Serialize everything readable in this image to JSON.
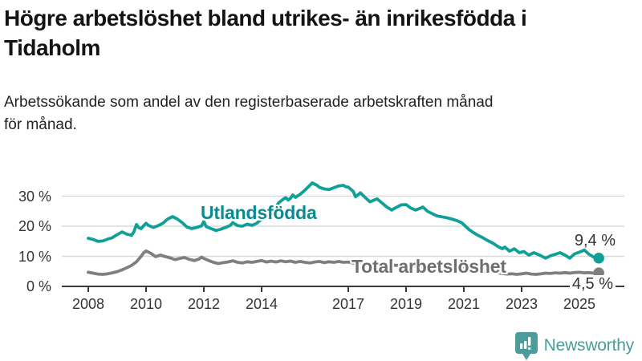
{
  "header": {
    "title_line1": "Högre arbetslöshet bland utrikes- än inrikesfödda i",
    "title_line2": "Tidaholm",
    "subtitle_line1": "Arbetssökande som andel av den registerbaserade arbetskraften månad",
    "subtitle_line2": "för månad."
  },
  "footer": {
    "brand": "Newsworthy",
    "brand_color": "#4a9d9a"
  },
  "chart_data": {
    "type": "line",
    "title": "Högre arbetslöshet bland utrikes- än inrikesfödda i Tidaholm",
    "subtitle": "Arbetssökande som andel av den registerbaserade arbetskraften månad för månad.",
    "xlabel": "",
    "ylabel": "",
    "x_unit": "year (monthly data)",
    "y_unit": "%",
    "xlim": [
      2007.1,
      2026.2
    ],
    "ylim": [
      0,
      36
    ],
    "grid": "horizontal",
    "y_ticks": [
      0,
      10,
      20,
      30
    ],
    "y_tick_suffix": " %",
    "x_ticks": [
      2008,
      2010,
      2012,
      2014,
      2017,
      2019,
      2021,
      2023,
      2025
    ],
    "colors": {
      "grid": "#d9d9d9",
      "axis": "#3a3a3a",
      "tick_text": "#333333"
    },
    "series": [
      {
        "name": "Utlandsfödda",
        "color": "#10a097",
        "label_color": "#0b8b8f",
        "end_label": "9,4 %",
        "end_value": 9.4,
        "points": [
          [
            2008.0,
            16.0
          ],
          [
            2008.17,
            15.6
          ],
          [
            2008.33,
            15.0
          ],
          [
            2008.5,
            15.1
          ],
          [
            2008.67,
            15.7
          ],
          [
            2008.83,
            16.2
          ],
          [
            2009.0,
            17.2
          ],
          [
            2009.17,
            18.1
          ],
          [
            2009.33,
            17.4
          ],
          [
            2009.5,
            17.0
          ],
          [
            2009.58,
            18.2
          ],
          [
            2009.67,
            20.6
          ],
          [
            2009.75,
            19.5
          ],
          [
            2009.83,
            19.2
          ],
          [
            2009.92,
            20.2
          ],
          [
            2010.0,
            21.0
          ],
          [
            2010.08,
            20.3
          ],
          [
            2010.25,
            19.6
          ],
          [
            2010.42,
            20.2
          ],
          [
            2010.58,
            21.0
          ],
          [
            2010.75,
            22.4
          ],
          [
            2010.92,
            23.2
          ],
          [
            2011.08,
            22.4
          ],
          [
            2011.25,
            21.2
          ],
          [
            2011.42,
            19.7
          ],
          [
            2011.58,
            19.2
          ],
          [
            2011.75,
            19.6
          ],
          [
            2011.92,
            20.1
          ],
          [
            2012.0,
            21.6
          ],
          [
            2012.08,
            19.9
          ],
          [
            2012.25,
            19.2
          ],
          [
            2012.42,
            18.6
          ],
          [
            2012.58,
            19.0
          ],
          [
            2012.75,
            19.6
          ],
          [
            2012.92,
            20.3
          ],
          [
            2013.0,
            21.2
          ],
          [
            2013.17,
            20.2
          ],
          [
            2013.33,
            20.0
          ],
          [
            2013.5,
            20.7
          ],
          [
            2013.67,
            20.3
          ],
          [
            2013.83,
            21.0
          ],
          [
            2014.0,
            22.4
          ],
          [
            2014.17,
            23.4
          ],
          [
            2014.33,
            24.6
          ],
          [
            2014.5,
            26.2
          ],
          [
            2014.58,
            27.7
          ],
          [
            2014.75,
            29.0
          ],
          [
            2014.83,
            29.5
          ],
          [
            2014.92,
            28.7
          ],
          [
            2015.0,
            29.3
          ],
          [
            2015.08,
            30.4
          ],
          [
            2015.17,
            29.6
          ],
          [
            2015.33,
            30.6
          ],
          [
            2015.5,
            32.0
          ],
          [
            2015.67,
            33.6
          ],
          [
            2015.75,
            34.4
          ],
          [
            2015.92,
            33.6
          ],
          [
            2016.0,
            32.9
          ],
          [
            2016.17,
            32.4
          ],
          [
            2016.33,
            32.2
          ],
          [
            2016.5,
            32.8
          ],
          [
            2016.67,
            33.4
          ],
          [
            2016.83,
            33.6
          ],
          [
            2016.92,
            33.1
          ],
          [
            2017.0,
            33.0
          ],
          [
            2017.17,
            31.6
          ],
          [
            2017.25,
            29.8
          ],
          [
            2017.42,
            31.1
          ],
          [
            2017.58,
            29.6
          ],
          [
            2017.75,
            28.1
          ],
          [
            2017.92,
            28.8
          ],
          [
            2018.0,
            29.1
          ],
          [
            2018.17,
            27.7
          ],
          [
            2018.33,
            26.4
          ],
          [
            2018.5,
            25.4
          ],
          [
            2018.67,
            26.3
          ],
          [
            2018.83,
            27.1
          ],
          [
            2019.0,
            27.2
          ],
          [
            2019.17,
            26.0
          ],
          [
            2019.33,
            25.4
          ],
          [
            2019.5,
            26.0
          ],
          [
            2019.58,
            26.4
          ],
          [
            2019.75,
            24.9
          ],
          [
            2019.92,
            24.1
          ],
          [
            2020.08,
            23.4
          ],
          [
            2020.25,
            23.1
          ],
          [
            2020.42,
            22.8
          ],
          [
            2020.58,
            22.4
          ],
          [
            2020.75,
            21.9
          ],
          [
            2020.92,
            21.2
          ],
          [
            2021.0,
            20.5
          ],
          [
            2021.17,
            19.0
          ],
          [
            2021.33,
            17.9
          ],
          [
            2021.5,
            16.9
          ],
          [
            2021.67,
            16.1
          ],
          [
            2021.83,
            15.2
          ],
          [
            2022.0,
            14.4
          ],
          [
            2022.17,
            13.3
          ],
          [
            2022.33,
            12.5
          ],
          [
            2022.42,
            13.1
          ],
          [
            2022.58,
            11.7
          ],
          [
            2022.75,
            12.5
          ],
          [
            2022.92,
            11.2
          ],
          [
            2023.08,
            11.6
          ],
          [
            2023.25,
            10.4
          ],
          [
            2023.42,
            11.2
          ],
          [
            2023.58,
            10.6
          ],
          [
            2023.75,
            9.8
          ],
          [
            2023.83,
            9.4
          ],
          [
            2024.0,
            10.2
          ],
          [
            2024.17,
            10.7
          ],
          [
            2024.33,
            11.2
          ],
          [
            2024.5,
            10.4
          ],
          [
            2024.67,
            9.4
          ],
          [
            2024.83,
            10.8
          ],
          [
            2025.0,
            11.4
          ],
          [
            2025.17,
            12.1
          ],
          [
            2025.33,
            10.7
          ],
          [
            2025.5,
            9.7
          ],
          [
            2025.67,
            9.4
          ]
        ]
      },
      {
        "name": "Total arbetslöshet",
        "color": "#7f7f7f",
        "label_color": "#6f6f6f",
        "end_label": "4,5 %",
        "end_value": 4.5,
        "points": [
          [
            2008.0,
            4.7
          ],
          [
            2008.17,
            4.4
          ],
          [
            2008.33,
            4.1
          ],
          [
            2008.5,
            4.0
          ],
          [
            2008.67,
            4.2
          ],
          [
            2008.83,
            4.5
          ],
          [
            2009.0,
            4.9
          ],
          [
            2009.17,
            5.5
          ],
          [
            2009.33,
            6.2
          ],
          [
            2009.5,
            7.0
          ],
          [
            2009.67,
            8.2
          ],
          [
            2009.83,
            10.0
          ],
          [
            2009.92,
            11.2
          ],
          [
            2010.0,
            11.8
          ],
          [
            2010.17,
            11.0
          ],
          [
            2010.33,
            9.9
          ],
          [
            2010.5,
            10.4
          ],
          [
            2010.67,
            9.9
          ],
          [
            2010.83,
            9.5
          ],
          [
            2011.0,
            8.9
          ],
          [
            2011.17,
            9.3
          ],
          [
            2011.33,
            9.6
          ],
          [
            2011.5,
            9.0
          ],
          [
            2011.67,
            8.6
          ],
          [
            2011.83,
            9.1
          ],
          [
            2011.92,
            9.7
          ],
          [
            2012.0,
            9.3
          ],
          [
            2012.17,
            8.6
          ],
          [
            2012.33,
            8.0
          ],
          [
            2012.5,
            7.6
          ],
          [
            2012.67,
            7.9
          ],
          [
            2012.83,
            8.1
          ],
          [
            2013.0,
            8.5
          ],
          [
            2013.17,
            8.0
          ],
          [
            2013.33,
            7.8
          ],
          [
            2013.5,
            8.2
          ],
          [
            2013.67,
            8.0
          ],
          [
            2013.83,
            8.3
          ],
          [
            2014.0,
            8.6
          ],
          [
            2014.17,
            8.1
          ],
          [
            2014.33,
            8.4
          ],
          [
            2014.5,
            8.1
          ],
          [
            2014.67,
            8.5
          ],
          [
            2014.83,
            8.2
          ],
          [
            2015.0,
            8.4
          ],
          [
            2015.17,
            8.0
          ],
          [
            2015.33,
            8.3
          ],
          [
            2015.5,
            8.0
          ],
          [
            2015.67,
            7.8
          ],
          [
            2015.83,
            8.1
          ],
          [
            2016.0,
            8.3
          ],
          [
            2016.17,
            7.9
          ],
          [
            2016.33,
            8.2
          ],
          [
            2016.5,
            8.0
          ],
          [
            2016.67,
            8.3
          ],
          [
            2016.83,
            8.0
          ],
          [
            2017.0,
            8.1
          ],
          [
            2017.25,
            7.6
          ],
          [
            2017.5,
            7.8
          ],
          [
            2017.75,
            7.4
          ],
          [
            2018.0,
            7.5
          ],
          [
            2018.33,
            7.2
          ],
          [
            2018.67,
            7.0
          ],
          [
            2019.0,
            7.1
          ],
          [
            2019.33,
            6.7
          ],
          [
            2019.67,
            6.4
          ],
          [
            2020.0,
            6.6
          ],
          [
            2020.33,
            7.0
          ],
          [
            2020.67,
            6.5
          ],
          [
            2021.0,
            6.1
          ],
          [
            2021.33,
            5.6
          ],
          [
            2021.67,
            5.1
          ],
          [
            2022.0,
            4.7
          ],
          [
            2022.33,
            4.3
          ],
          [
            2022.5,
            4.1
          ],
          [
            2022.67,
            4.2
          ],
          [
            2022.83,
            4.0
          ],
          [
            2023.0,
            4.2
          ],
          [
            2023.17,
            4.4
          ],
          [
            2023.33,
            4.1
          ],
          [
            2023.5,
            4.0
          ],
          [
            2023.67,
            4.2
          ],
          [
            2023.83,
            4.4
          ],
          [
            2024.0,
            4.3
          ],
          [
            2024.17,
            4.5
          ],
          [
            2024.33,
            4.4
          ],
          [
            2024.5,
            4.6
          ],
          [
            2024.67,
            4.4
          ],
          [
            2024.83,
            4.6
          ],
          [
            2025.0,
            4.7
          ],
          [
            2025.17,
            4.5
          ],
          [
            2025.33,
            4.6
          ],
          [
            2025.5,
            4.4
          ],
          [
            2025.67,
            4.5
          ]
        ]
      }
    ]
  }
}
